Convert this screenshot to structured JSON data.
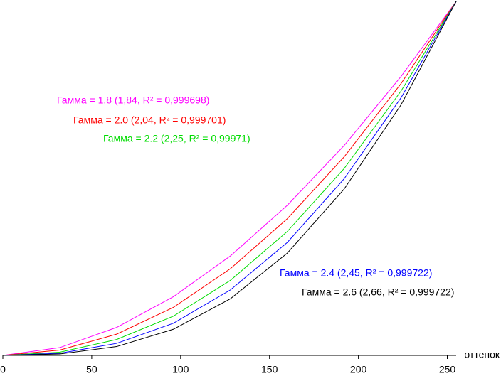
{
  "chart_data": {
    "type": "line",
    "x_label": "оттенок",
    "x": [
      0,
      32,
      64,
      96,
      128,
      160,
      192,
      224,
      255
    ],
    "xlim": [
      0,
      255
    ],
    "xticks": [
      0,
      50,
      100,
      150,
      200,
      250
    ],
    "ylim": [
      0,
      1
    ],
    "series": [
      {
        "name": "Гамма = 1.8 (1,84, R² = 0,999698)",
        "color": "#ff00ff",
        "values": [
          0,
          0.022,
          0.079,
          0.166,
          0.281,
          0.424,
          0.593,
          0.788,
          1
        ]
      },
      {
        "name": "Гамма = 2.0 (2,04, R² = 0,999701)",
        "color": "#ff0000",
        "values": [
          0,
          0.015,
          0.06,
          0.136,
          0.245,
          0.386,
          0.561,
          0.768,
          1
        ]
      },
      {
        "name": "Гамма = 2.2 (2,25, R² = 0,99971)",
        "color": "#00dd00",
        "values": [
          0,
          0.009,
          0.045,
          0.111,
          0.212,
          0.35,
          0.528,
          0.747,
          1
        ]
      },
      {
        "name": "Гамма = 2.4 (2,45, R² = 0,999722)",
        "color": "#0000ff",
        "values": [
          0,
          0.006,
          0.034,
          0.091,
          0.185,
          0.319,
          0.499,
          0.728,
          1
        ]
      },
      {
        "name": "Гамма = 2.6 (2,66, R² = 0,999722)",
        "color": "#000000",
        "values": [
          0,
          0.004,
          0.025,
          0.074,
          0.16,
          0.289,
          0.47,
          0.708,
          1
        ]
      }
    ]
  }
}
